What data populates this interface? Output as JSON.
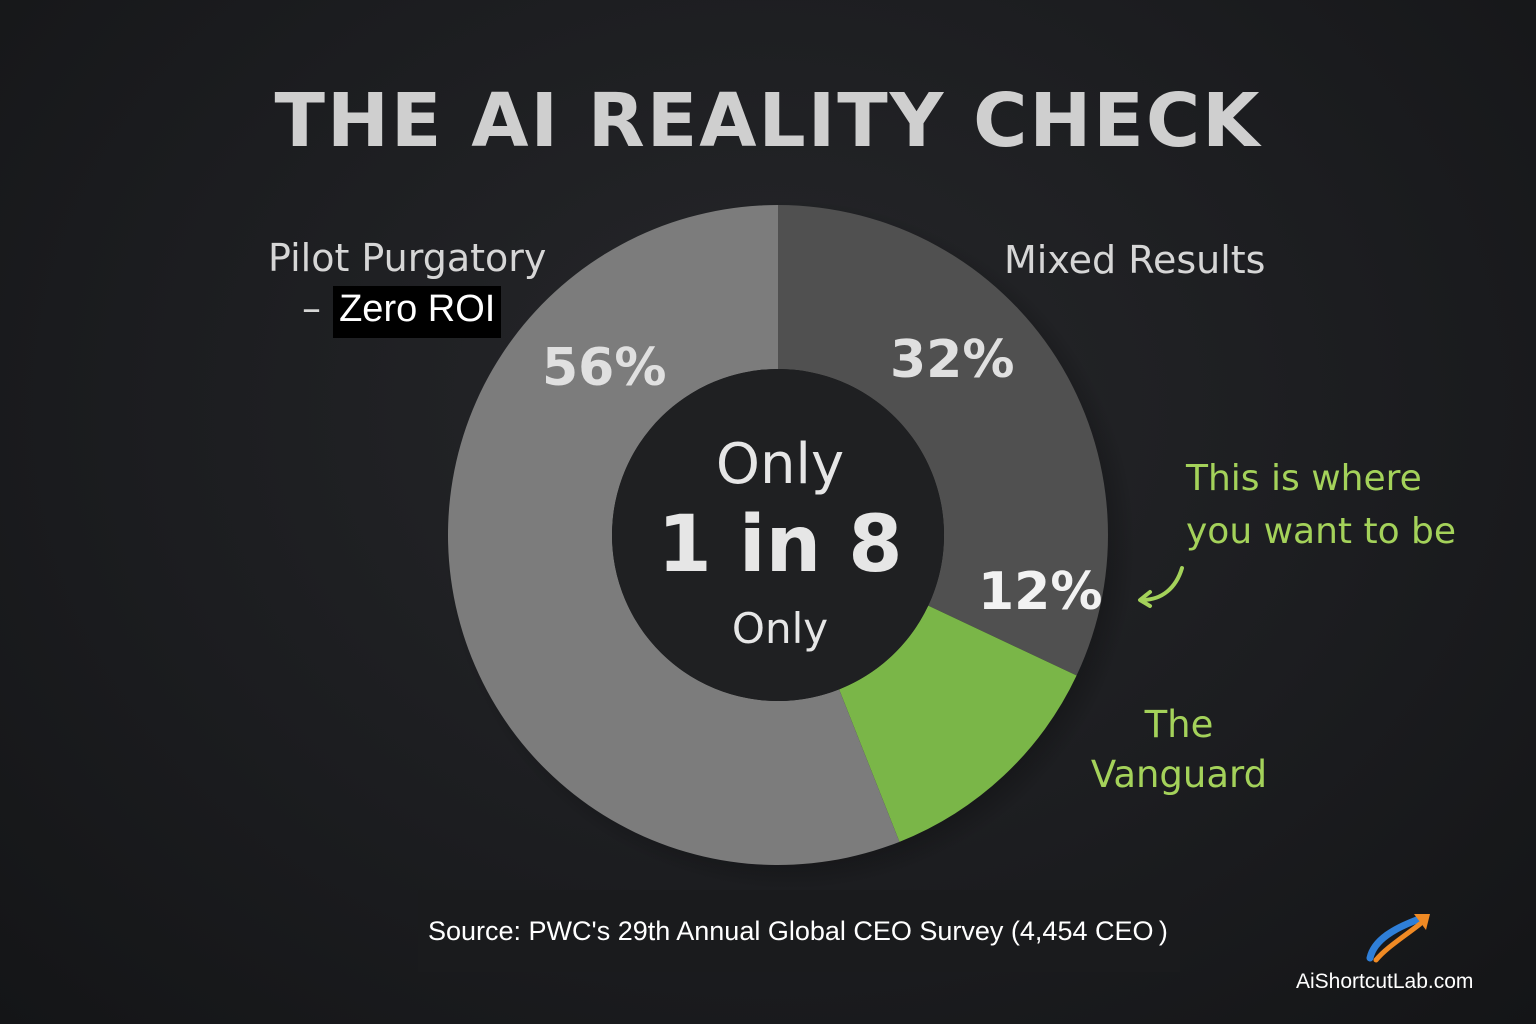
{
  "chart_data": {
    "type": "pie",
    "title": "THE AI REALITY CHECK",
    "slices": [
      {
        "label_line1": "Pilot Purgatory",
        "label_line2_dash": "–",
        "label_line2": "Zero ROI",
        "value": 56,
        "value_label": "56%",
        "color": "#7c7c7c"
      },
      {
        "label": "Mixed Results",
        "value": 32,
        "value_label": "32%",
        "color": "#505050"
      },
      {
        "label_line1": "The",
        "label_line2": "Vanguard",
        "value": 12,
        "value_label": "12%",
        "color": "#7ab648"
      }
    ],
    "center_text": {
      "line1": "Only",
      "line2": "1 in 8",
      "line3": "Only"
    },
    "annotation": {
      "line1": "This is where",
      "line2": "you want to be",
      "color": "#a4d25a"
    }
  },
  "source_text": "Source: PWC's 29th Annual Global CEO Survey (4,454 CEO )",
  "brand": "AiShortcutLab.com",
  "icons": {
    "logo": "rocket-swoosh-icon",
    "annotation_arrow": "curved-arrow-icon"
  }
}
